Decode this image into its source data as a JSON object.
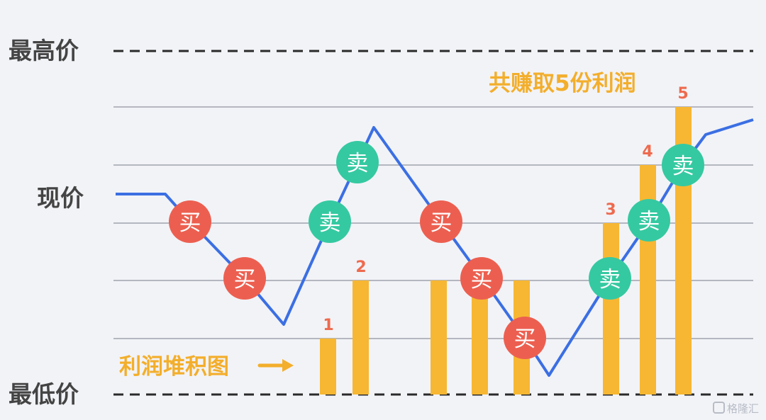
{
  "labels": {
    "highest_price": "最高价",
    "current_price": "现价",
    "lowest_price": "最低价",
    "total_profit": "共赚取5份利润",
    "profit_chart": "利润堆积图",
    "watermark": "格隆汇"
  },
  "buy_label": "买",
  "sell_label": "卖",
  "bar_numbers": [
    "1",
    "2",
    "3",
    "4",
    "5"
  ],
  "colors": {
    "line": "#3b6fe3",
    "bar": "#f7b733",
    "buy": "#ec5f50",
    "sell": "#35c9a1",
    "number": "#ee6a4e",
    "title": "#f3ae2b",
    "axis_text": "#444444",
    "dashed": "#2a2a2a",
    "grid": "#b5b7c0"
  }
}
